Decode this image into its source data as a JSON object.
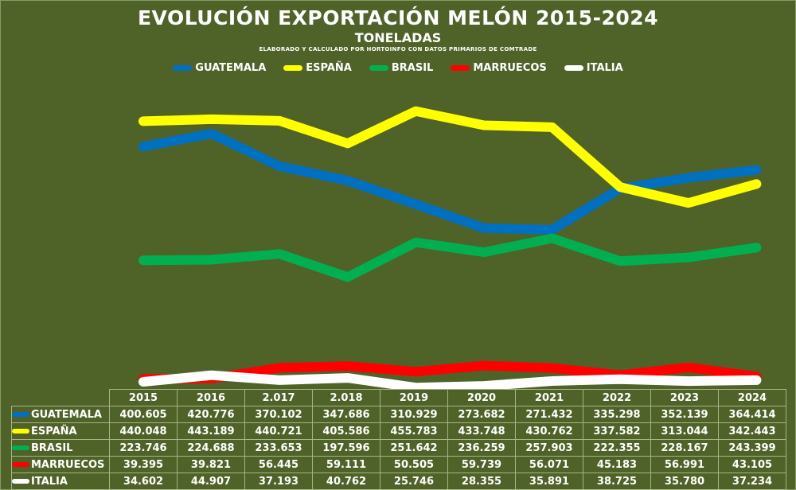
{
  "title": "EVOLUCIÓN EXPORTACIÓN MELÓN 2015-2024",
  "subtitle": "TONELADAS",
  "note": "ELABORADO Y CALCULADO POR HORTOINFO CON DATOS PRIMARIOS DE COMTRADE",
  "colors": {
    "background": "#4f6228",
    "grid": "#a6b487",
    "text": "#ffffff"
  },
  "chart_data": {
    "type": "line",
    "title": "EVOLUCIÓN EXPORTACIÓN MELÓN 2015-2024",
    "subtitle": "TONELADAS",
    "categories": [
      "2015",
      "2016",
      "2.017",
      "2.018",
      "2019",
      "2020",
      "2021",
      "2022",
      "2023",
      "2024"
    ],
    "ylim": [
      0,
      480000
    ],
    "grid": false,
    "legend_position": "top",
    "series": [
      {
        "name": "GUATEMALA",
        "color": "#0070c0",
        "labels": [
          "400.605",
          "420.776",
          "370.102",
          "347.686",
          "310.929",
          "273.682",
          "271.432",
          "335.298",
          "352.139",
          "364.414"
        ],
        "values": [
          400605,
          420776,
          370102,
          347686,
          310929,
          273682,
          271432,
          335298,
          352139,
          364414
        ]
      },
      {
        "name": "ESPAÑA",
        "color": "#ffff00",
        "labels": [
          "440.048",
          "443.189",
          "440.721",
          "405.586",
          "455.783",
          "433.748",
          "430.762",
          "337.582",
          "313.044",
          "342.443"
        ],
        "values": [
          440048,
          443189,
          440721,
          405586,
          455783,
          433748,
          430762,
          337582,
          313044,
          342443
        ]
      },
      {
        "name": "BRASIL",
        "color": "#00b050",
        "labels": [
          "223.746",
          "224.688",
          "233.653",
          "197.596",
          "251.642",
          "236.259",
          "257.903",
          "222.355",
          "228.167",
          "243.399"
        ],
        "values": [
          223746,
          224688,
          233653,
          197596,
          251642,
          236259,
          257903,
          222355,
          228167,
          243399
        ]
      },
      {
        "name": "MARRUECOS",
        "color": "#ff0000",
        "labels": [
          "39.395",
          "39.821",
          "56.445",
          "59.111",
          "50.505",
          "59.739",
          "56.071",
          "45.183",
          "56.991",
          "43.105"
        ],
        "values": [
          39395,
          39821,
          56445,
          59111,
          50505,
          59739,
          56071,
          45183,
          56991,
          43105
        ]
      },
      {
        "name": "ITALIA",
        "color": "#ffffff",
        "labels": [
          "34.602",
          "44.907",
          "37.193",
          "40.762",
          "25.746",
          "28.355",
          "35.891",
          "38.725",
          "35.780",
          "37.234"
        ],
        "values": [
          34602,
          44907,
          37193,
          40762,
          25746,
          28355,
          35891,
          38725,
          35780,
          37234
        ]
      }
    ]
  }
}
